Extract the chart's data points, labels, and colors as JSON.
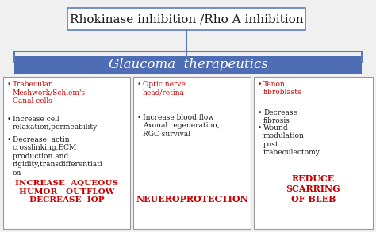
{
  "title_box": "Rhokinase inhibition /Rho A inhibition",
  "middle_box": "Glaucoma  therapeutics",
  "middle_box_bg": "#4F6DB5",
  "middle_box_text_color": "#ffffff",
  "border_color": "#5B7DBF",
  "bg_color": "#f0f0f0",
  "col1_header": "Trabecular\nMeshwork/Schlem's\nCanal cells",
  "col1_bullet1": "Increase cell\nrelaxation,permeability",
  "col1_bullet2": "Decrease  actin\ncrosslinking,ECM\nproduction and\nrigidity,transdifferentiati\non",
  "col1_summary": "INCREASE  AQUEOUS\nHUMOR   OUTFLOW\nDECREASE  IOP",
  "col2_header": "Optic nerve\nhead/retina",
  "col2_bullet1": "Increase blood flow\nAxonal regeneration,\nRGC survival",
  "col2_summary": "NEUEROPROTECTION",
  "col3_header": "Tenon\nfibroblasts",
  "col3_bullet1": "Decrease\nfibrosis",
  "col3_bullet2": "Wound\nmodulation\npost\ntrabeculectomy",
  "col3_summary": "REDUCE\nSCARRING\nOF BLEB",
  "red_color": "#CC0000",
  "black_color": "#1a1a1a",
  "title_fontsize": 11,
  "middle_fontsize": 12,
  "body_fontsize": 6.5,
  "summary_fontsize": 7.5
}
